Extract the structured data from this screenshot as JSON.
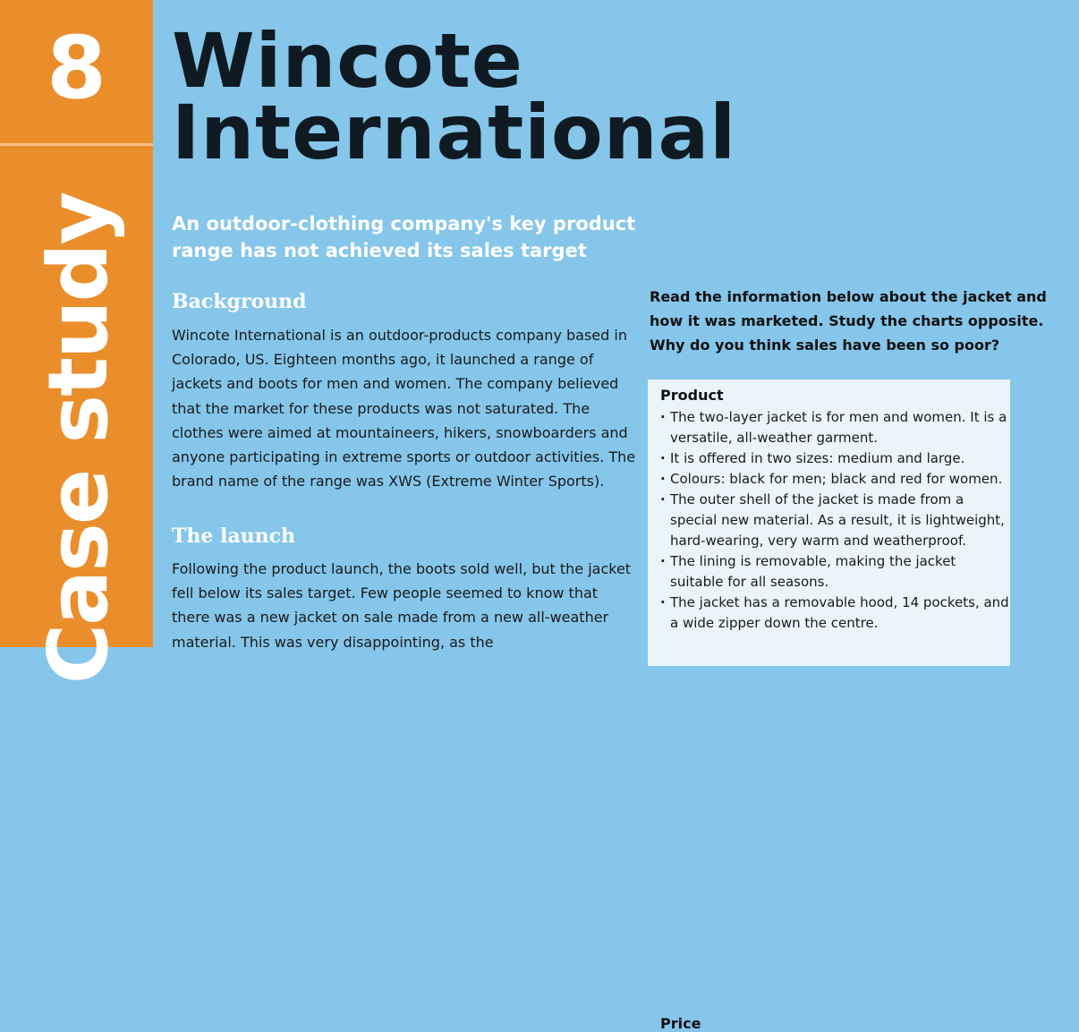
{
  "sidebar": {
    "number": "8",
    "label": "Case study"
  },
  "title": {
    "line1": "Wincote",
    "line2": "International"
  },
  "subtitle": "An outdoor-clothing company's key product range has not achieved its sales target",
  "background": {
    "heading": "Background",
    "text": "Wincote International is an outdoor-products company based in Colorado, US. Eighteen months ago, it launched a range of jackets and boots for men and women. The company believed that the market for these products was not saturated. The clothes were aimed at mountaineers, hikers, snowboarders and anyone participating in extreme sports or outdoor activities. The brand name of the range was XWS (Extreme Winter Sports)."
  },
  "launch": {
    "heading": "The launch",
    "text": "Following the product launch, the boots sold well, but the jacket fell below its sales target. Few people seemed to know that there was a new jacket on sale made from a new all-weather material. This was very disappointing, as the"
  },
  "task": "Read the information below about the jacket and how it was marketed. Study the charts opposite. Why do you think sales have been so poor?",
  "product_box": {
    "heading": "Product",
    "items": [
      "The two-layer jacket is for men and women. It is a versatile, all-weather garment.",
      "It is offered in two sizes: medium and large.",
      "Colours: black for men; black and red for women.",
      "The outer shell of the jacket is made from a special new material. As a result, it is lightweight, hard-wearing, very warm and weatherproof.",
      "The lining is removable, making the jacket suitable for all seasons.",
      "The jacket has a removable hood, 14 pockets, and a wide zipper down the centre."
    ],
    "next_heading": "Price"
  }
}
